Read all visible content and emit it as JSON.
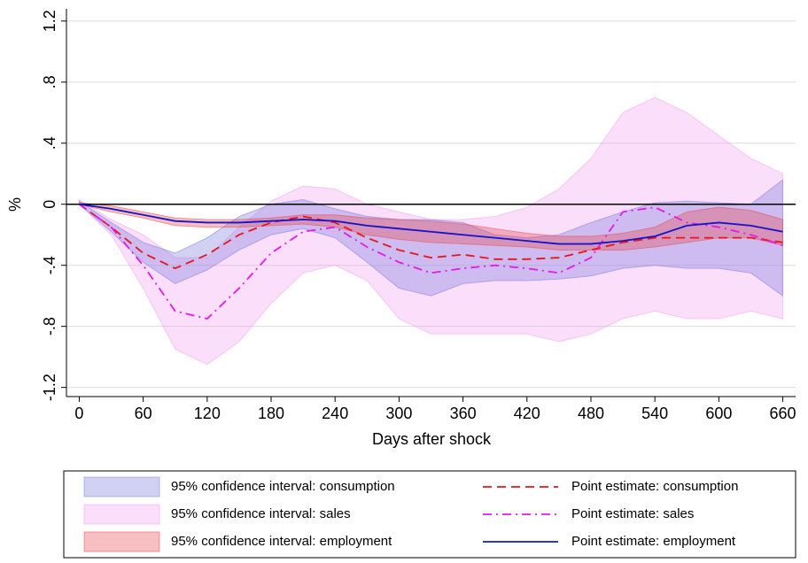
{
  "chart_data": {
    "type": "band-line",
    "xlabel": "Days after shock",
    "ylabel": "%",
    "x": [
      0,
      30,
      60,
      90,
      120,
      150,
      180,
      210,
      240,
      270,
      300,
      330,
      360,
      390,
      420,
      450,
      480,
      510,
      540,
      570,
      600,
      630,
      660
    ],
    "xlim": [
      -12,
      672
    ],
    "xticks": [
      0,
      60,
      120,
      180,
      240,
      300,
      360,
      420,
      480,
      540,
      600,
      660
    ],
    "ylim": [
      -1.26,
      1.28
    ],
    "yticks": [
      -1.2,
      {
        "value": -0.8,
        "label": "-.8"
      },
      {
        "value": -0.4,
        "label": "-.4"
      },
      0,
      {
        "value": 0.4,
        "label": ".4"
      },
      {
        "value": 0.8,
        "label": ".8"
      },
      1.2
    ],
    "grid": true,
    "zero_line": true,
    "legend": "bottom",
    "series": [
      {
        "name": "95% confidence interval: consumption",
        "kind": "band",
        "color": "#7b7bdc",
        "lower": [
          0,
          -0.18,
          -0.38,
          -0.52,
          -0.43,
          -0.3,
          -0.2,
          -0.16,
          -0.22,
          -0.38,
          -0.55,
          -0.6,
          -0.52,
          -0.5,
          -0.5,
          -0.49,
          -0.47,
          -0.42,
          -0.4,
          -0.42,
          -0.42,
          -0.45,
          -0.6
        ],
        "upper": [
          0.02,
          -0.12,
          -0.25,
          -0.32,
          -0.22,
          -0.08,
          0,
          0.03,
          -0.03,
          -0.08,
          -0.1,
          -0.1,
          -0.12,
          -0.2,
          -0.22,
          -0.2,
          -0.12,
          -0.05,
          0.01,
          0.02,
          0.01,
          0,
          0.16
        ]
      },
      {
        "name": "95% confidence interval: sales",
        "kind": "band",
        "color": "#f0a0f0",
        "lower": [
          0,
          -0.2,
          -0.55,
          -0.95,
          -1.05,
          -0.9,
          -0.65,
          -0.45,
          -0.4,
          -0.5,
          -0.75,
          -0.85,
          -0.85,
          -0.85,
          -0.85,
          -0.9,
          -0.85,
          -0.75,
          -0.7,
          -0.75,
          -0.75,
          -0.7,
          -0.75
        ],
        "upper": [
          0.03,
          -0.1,
          -0.2,
          -0.35,
          -0.35,
          -0.15,
          0.02,
          0.12,
          0.1,
          0,
          -0.05,
          -0.1,
          -0.1,
          -0.08,
          -0.02,
          0.1,
          0.3,
          0.6,
          0.7,
          0.6,
          0.45,
          0.3,
          0.2
        ]
      },
      {
        "name": "95% confidence interval: employment",
        "kind": "band",
        "color": "#e8474f",
        "lower": [
          0,
          -0.05,
          -0.09,
          -0.14,
          -0.15,
          -0.15,
          -0.14,
          -0.13,
          -0.15,
          -0.2,
          -0.23,
          -0.25,
          -0.26,
          -0.27,
          -0.28,
          -0.3,
          -0.3,
          -0.3,
          -0.28,
          -0.25,
          -0.22,
          -0.22,
          -0.27
        ],
        "upper": [
          0.01,
          -0.01,
          -0.05,
          -0.09,
          -0.1,
          -0.1,
          -0.09,
          -0.07,
          -0.07,
          -0.09,
          -0.1,
          -0.11,
          -0.13,
          -0.16,
          -0.19,
          -0.21,
          -0.21,
          -0.19,
          -0.15,
          -0.05,
          -0.02,
          -0.04,
          -0.1
        ]
      },
      {
        "name": "Point estimate: consumption",
        "kind": "line",
        "color": "#e8141c",
        "dash": "dash",
        "values": [
          0,
          -0.15,
          -0.32,
          -0.42,
          -0.33,
          -0.2,
          -0.12,
          -0.08,
          -0.12,
          -0.22,
          -0.3,
          -0.35,
          -0.33,
          -0.36,
          -0.36,
          -0.35,
          -0.3,
          -0.25,
          -0.22,
          -0.22,
          -0.22,
          -0.22,
          -0.25
        ]
      },
      {
        "name": "Point estimate: sales",
        "kind": "line",
        "color": "#e619e6",
        "dash": "dashdot",
        "values": [
          0,
          -0.15,
          -0.4,
          -0.7,
          -0.75,
          -0.55,
          -0.32,
          -0.18,
          -0.15,
          -0.28,
          -0.38,
          -0.45,
          -0.42,
          -0.4,
          -0.42,
          -0.45,
          -0.35,
          -0.05,
          -0.02,
          -0.12,
          -0.15,
          -0.2,
          -0.27
        ]
      },
      {
        "name": "Point estimate: employment",
        "kind": "line",
        "color": "#1414c8",
        "dash": "solid",
        "values": [
          0,
          -0.03,
          -0.07,
          -0.11,
          -0.12,
          -0.12,
          -0.11,
          -0.1,
          -0.11,
          -0.14,
          -0.16,
          -0.18,
          -0.2,
          -0.22,
          -0.24,
          -0.26,
          -0.26,
          -0.24,
          -0.21,
          -0.14,
          -0.12,
          -0.14,
          -0.18
        ]
      }
    ]
  }
}
